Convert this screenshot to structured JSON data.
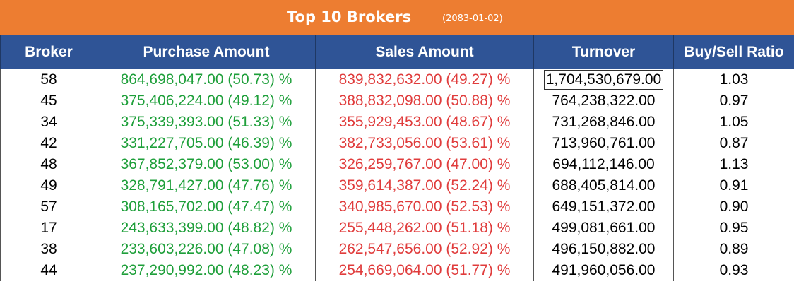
{
  "banner": {
    "title": "Top 10 Brokers",
    "date": "(2083-01-02)"
  },
  "headers": [
    "Broker",
    "Purchase Amount",
    "Sales Amount",
    "Turnover",
    "Buy/Sell Ratio"
  ],
  "colors": {
    "banner": "#ed7d31",
    "header": "#2f5496",
    "buy": "#1e9f3a",
    "sell": "#e03c3c"
  },
  "rows": [
    {
      "broker": "58",
      "purchase": "864,698,047.00 (50.73) %",
      "sales": "839,832,632.00 (49.27) %",
      "turnover": "1,704,530,679.00",
      "ratio": "1.03"
    },
    {
      "broker": "45",
      "purchase": "375,406,224.00 (49.12) %",
      "sales": "388,832,098.00 (50.88) %",
      "turnover": "764,238,322.00",
      "ratio": "0.97"
    },
    {
      "broker": "34",
      "purchase": "375,339,393.00 (51.33) %",
      "sales": "355,929,453.00 (48.67) %",
      "turnover": "731,268,846.00",
      "ratio": "1.05"
    },
    {
      "broker": "42",
      "purchase": "331,227,705.00 (46.39) %",
      "sales": "382,733,056.00 (53.61) %",
      "turnover": "713,960,761.00",
      "ratio": "0.87"
    },
    {
      "broker": "48",
      "purchase": "367,852,379.00 (53.00) %",
      "sales": "326,259,767.00 (47.00) %",
      "turnover": "694,112,146.00",
      "ratio": "1.13"
    },
    {
      "broker": "49",
      "purchase": "328,791,427.00 (47.76) %",
      "sales": "359,614,387.00 (52.24) %",
      "turnover": "688,405,814.00",
      "ratio": "0.91"
    },
    {
      "broker": "57",
      "purchase": "308,165,702.00 (47.47) %",
      "sales": "340,985,670.00 (52.53) %",
      "turnover": "649,151,372.00",
      "ratio": "0.90"
    },
    {
      "broker": "17",
      "purchase": "243,633,399.00 (48.82) %",
      "sales": "255,448,262.00 (51.18) %",
      "turnover": "499,081,661.00",
      "ratio": "0.95"
    },
    {
      "broker": "38",
      "purchase": "233,603,226.00 (47.08) %",
      "sales": "262,547,656.00 (52.92) %",
      "turnover": "496,150,882.00",
      "ratio": "0.89"
    },
    {
      "broker": "44",
      "purchase": "237,290,992.00 (48.23) %",
      "sales": "254,669,064.00 (51.77) %",
      "turnover": "491,960,056.00",
      "ratio": "0.93"
    }
  ]
}
